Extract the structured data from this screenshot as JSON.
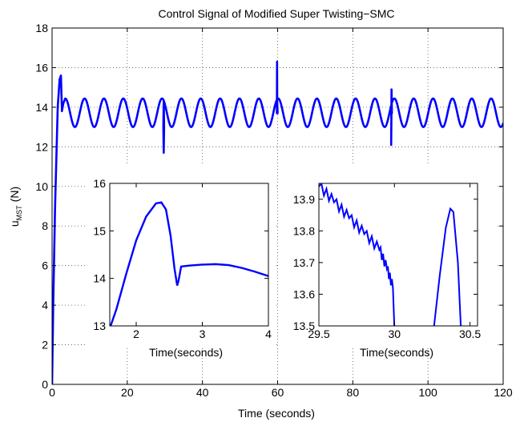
{
  "chart_data": [
    {
      "type": "line",
      "title": "Control Signal of Modified Super Twisting−SMC",
      "xlabel": "Time (seconds)",
      "ylabel_main": "u",
      "ylabel_sub": "MST",
      "ylabel_unit": "(N)",
      "xlim": [
        0,
        120
      ],
      "ylim": [
        0,
        18
      ],
      "xticks": [
        "0",
        "20",
        "40",
        "60",
        "80",
        "100",
        "120"
      ],
      "yticks": [
        "0",
        "2",
        "4",
        "6",
        "8",
        "10",
        "12",
        "14",
        "16",
        "18"
      ],
      "grid": true,
      "line_color": "#0000ff",
      "series": [
        {
          "x": [
            0,
            0.3,
            0.8,
            1.5,
            2.0,
            2.35,
            2.6,
            2.62,
            3,
            4,
            6,
            10,
            20,
            29.6,
            29.7,
            29.8,
            30,
            40,
            59.8,
            59.85,
            59.9,
            60,
            70,
            80,
            90.2,
            90.3,
            90.4,
            90.5,
            100,
            110,
            120
          ],
          "y": [
            0,
            4,
            9,
            14,
            15.4,
            15.6,
            14.0,
            13.8,
            14.2,
            14.3,
            13.7,
            13.7,
            13.7,
            13.0,
            11.7,
            13.0,
            13.7,
            13.7,
            13.7,
            16.3,
            14.0,
            13.7,
            13.7,
            13.7,
            12.1,
            14.9,
            13.7,
            13.7,
            13.7,
            13.7,
            13.0
          ]
        }
      ],
      "oscillation": {
        "center": 13.72,
        "amplitude": 0.72,
        "period": 5.15,
        "start": 3.5
      }
    },
    {
      "type": "line",
      "xlabel": "Time(seconds)",
      "xlim": [
        1.6,
        4
      ],
      "ylim": [
        13,
        16
      ],
      "xticks": [
        "2",
        "3",
        "4"
      ],
      "yticks": [
        "13",
        "14",
        "15",
        "16"
      ],
      "grid": false,
      "series": [
        {
          "x": [
            1.6,
            1.7,
            1.85,
            2.0,
            2.15,
            2.3,
            2.38,
            2.45,
            2.52,
            2.58,
            2.62,
            2.64,
            2.68,
            2.8,
            3.0,
            3.2,
            3.4,
            3.6,
            3.8,
            4.0
          ],
          "y": [
            12.95,
            13.35,
            14.1,
            14.8,
            15.3,
            15.58,
            15.6,
            15.45,
            14.9,
            14.2,
            13.85,
            13.95,
            14.25,
            14.27,
            14.29,
            14.3,
            14.28,
            14.22,
            14.14,
            14.05
          ]
        }
      ]
    },
    {
      "type": "line",
      "xlabel": "Time(seconds)",
      "xlim": [
        29.5,
        30.55
      ],
      "ylim": [
        13.5,
        13.95
      ],
      "xticks": [
        "29.5",
        "30",
        "30.5"
      ],
      "yticks": [
        "13.5",
        "13.6",
        "13.7",
        "13.8",
        "13.9"
      ],
      "grid": false,
      "series": [
        {
          "x": [
            29.5,
            29.6,
            29.7,
            29.8,
            29.9,
            29.95,
            29.99,
            30.0
          ],
          "y": [
            13.94,
            13.89,
            13.84,
            13.79,
            13.74,
            13.68,
            13.62,
            13.49
          ]
        },
        {
          "x": [
            30.26,
            30.3,
            30.34,
            30.37,
            30.39,
            30.42,
            30.44
          ],
          "y": [
            13.49,
            13.66,
            13.81,
            13.87,
            13.86,
            13.7,
            13.49
          ]
        }
      ]
    }
  ]
}
